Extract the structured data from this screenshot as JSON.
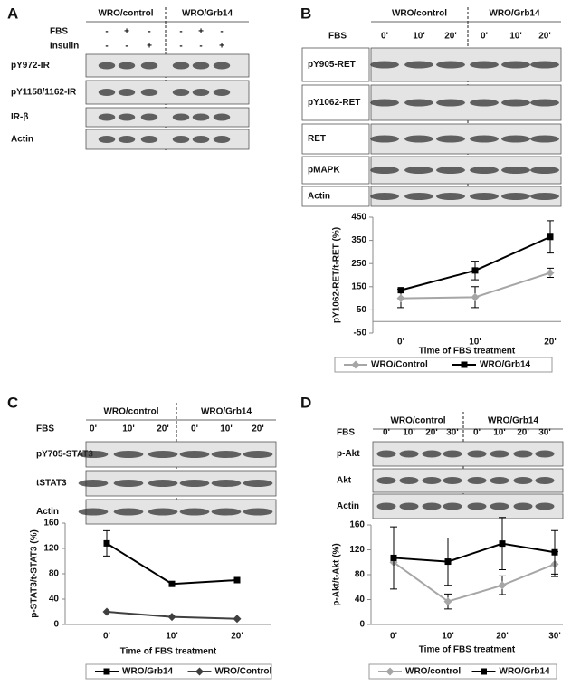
{
  "blots": [
    {
      "letter": "A",
      "groups": [
        "WRO/control",
        "WRO/Grb14"
      ],
      "conditions": [
        {
          "label": "FBS",
          "values": [
            "-",
            "+",
            "-",
            "-",
            "+",
            "-"
          ]
        },
        {
          "label": "Insulin",
          "values": [
            "-",
            "-",
            "+",
            "-",
            "-",
            "+"
          ]
        }
      ],
      "rows": [
        "pY972-IR",
        "pY1158/1162-IR",
        "IR-β",
        "Actin"
      ]
    },
    {
      "letter": "B",
      "groups": [
        "WRO/control",
        "WRO/Grb14"
      ],
      "conditions": [
        {
          "label": "FBS",
          "values": [
            "0'",
            "10'",
            "20'",
            "0'",
            "10'",
            "20'"
          ]
        }
      ],
      "rows": [
        "pY905-RET",
        "pY1062-RET",
        "RET",
        "pMAPK",
        "Actin"
      ]
    },
    {
      "letter": "C",
      "groups": [
        "WRO/control",
        "WRO/Grb14"
      ],
      "conditions": [
        {
          "label": "FBS",
          "values": [
            "0'",
            "10'",
            "20'",
            "0'",
            "10'",
            "20'"
          ]
        }
      ],
      "rows": [
        "pY705-STAT3",
        "tSTAT3",
        "Actin"
      ]
    },
    {
      "letter": "D",
      "groups": [
        "WRO/control",
        "WRO/Grb14"
      ],
      "conditions": [
        {
          "label": "FBS",
          "values": [
            "0'",
            "10'",
            "20'",
            "30'",
            "0'",
            "10'",
            "20'",
            "30'"
          ]
        }
      ],
      "rows": [
        "p-Akt",
        "Akt",
        "Actin"
      ]
    }
  ],
  "chart_data": [
    {
      "type": "line",
      "ylabel": "pY1062-RET/t-RET (%)",
      "xlabel": "Time of FBS treatment",
      "categories": [
        "0'",
        "10'",
        "20'"
      ],
      "ylim": [
        -50,
        450
      ],
      "yticks": [
        -50,
        50,
        150,
        250,
        350,
        450
      ],
      "series": [
        {
          "name": "WRO/Control",
          "color": "#a6a6a6",
          "marker": "diamond",
          "values": [
            100,
            105,
            210
          ],
          "errors": [
            40,
            45,
            20
          ]
        },
        {
          "name": "WRO/Grb14",
          "color": "#000000",
          "marker": "square",
          "values": [
            135,
            220,
            365
          ],
          "errors": [
            null,
            40,
            70
          ]
        }
      ]
    },
    {
      "type": "line",
      "ylabel": "p-STAT3/t-STAT3 (%)",
      "xlabel": "Time of FBS treatment",
      "categories": [
        "0'",
        "10'",
        "20'"
      ],
      "ylim": [
        0,
        160
      ],
      "yticks": [
        0,
        40,
        80,
        120,
        160
      ],
      "series": [
        {
          "name": "WRO/Grb14",
          "color": "#000000",
          "marker": "square",
          "values": [
            128,
            64,
            70
          ],
          "errors": [
            20,
            null,
            null
          ]
        },
        {
          "name": "WRO/Control",
          "color": "#404040",
          "marker": "diamond",
          "values": [
            20,
            12,
            9
          ]
        }
      ]
    },
    {
      "type": "line",
      "ylabel": "p-Akt/t-Akt (%)",
      "xlabel": "Time of FBS treatment",
      "categories": [
        "0'",
        "10'",
        "20'",
        "30'"
      ],
      "ylim": [
        0,
        160
      ],
      "yticks": [
        0,
        40,
        80,
        120,
        160
      ],
      "series": [
        {
          "name": "WRO/control",
          "color": "#a6a6a6",
          "marker": "diamond",
          "values": [
            100,
            37,
            63,
            97
          ],
          "errors": [
            null,
            12,
            15,
            20
          ]
        },
        {
          "name": "WRO/Grb14",
          "color": "#000000",
          "marker": "square",
          "values": [
            107,
            101,
            130,
            116
          ],
          "errors": [
            50,
            38,
            42,
            35
          ]
        }
      ]
    }
  ]
}
